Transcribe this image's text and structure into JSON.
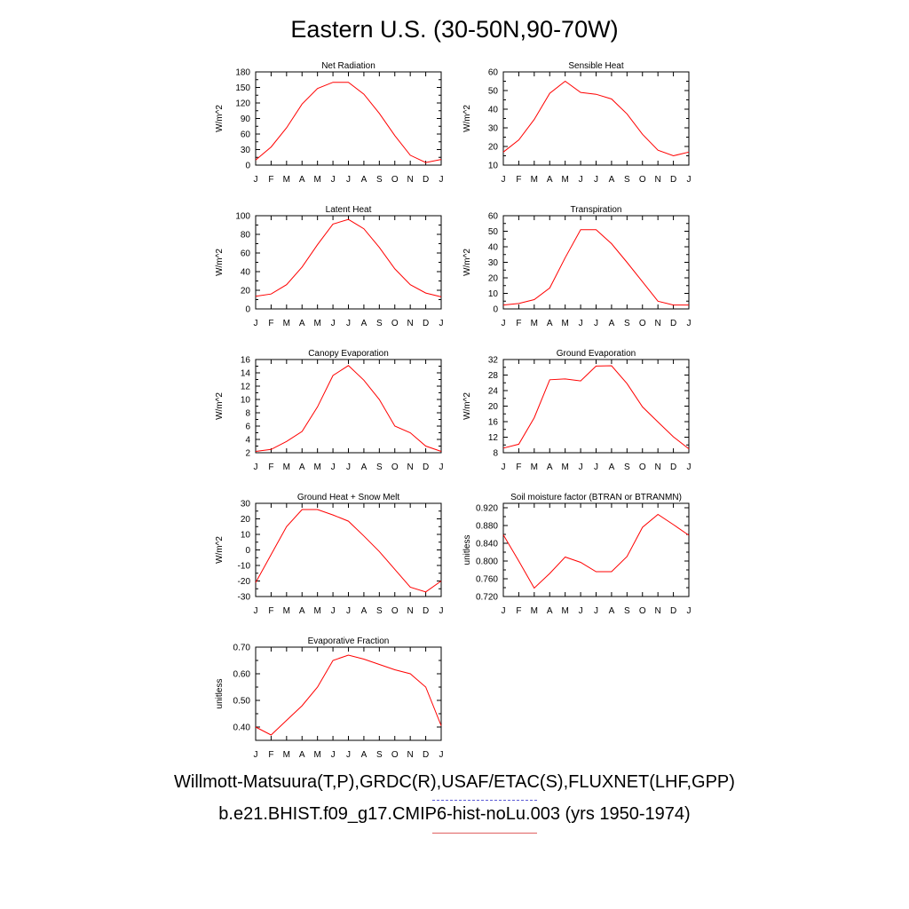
{
  "title": "Eastern U.S. (30-50N,90-70W)",
  "months": [
    "J",
    "F",
    "M",
    "A",
    "M",
    "J",
    "J",
    "A",
    "S",
    "O",
    "N",
    "D",
    "J"
  ],
  "line_color": "#ff0000",
  "chart_data": [
    {
      "type": "line",
      "title": "Net Radiation",
      "ylabel": "W/m^2",
      "ylim": [
        0,
        180
      ],
      "yticks": [
        "0",
        "30",
        "60",
        "90",
        "120",
        "150",
        "180"
      ],
      "values": [
        10,
        35,
        72,
        118,
        148,
        160,
        160,
        137,
        100,
        57,
        19,
        5,
        11
      ]
    },
    {
      "type": "line",
      "title": "Sensible Heat",
      "ylabel": "W/m^2",
      "ylim": [
        10,
        60
      ],
      "yticks": [
        "10",
        "20",
        "30",
        "40",
        "50",
        "60"
      ],
      "values": [
        17,
        23.5,
        34.5,
        48.5,
        55,
        49,
        48,
        45.5,
        37.5,
        26.5,
        18,
        15,
        17
      ]
    },
    {
      "type": "line",
      "title": "Latent Heat",
      "ylabel": "W/m^2",
      "ylim": [
        0,
        100
      ],
      "yticks": [
        "0",
        "20",
        "40",
        "60",
        "80",
        "100"
      ],
      "values": [
        13.5,
        16,
        26,
        45,
        69,
        91,
        96,
        86,
        66,
        43,
        26,
        17,
        13
      ]
    },
    {
      "type": "line",
      "title": "Transpiration",
      "ylabel": "W/m^2",
      "ylim": [
        0,
        60
      ],
      "yticks": [
        "0",
        "10",
        "20",
        "30",
        "40",
        "50",
        "60"
      ],
      "values": [
        2.5,
        3.5,
        6,
        13.5,
        33,
        51,
        51,
        42,
        30,
        17.5,
        5,
        2.5,
        2.5
      ]
    },
    {
      "type": "line",
      "title": "Canopy Evaporation",
      "ylabel": "W/m^2",
      "ylim": [
        2,
        16
      ],
      "yticks": [
        "2",
        "4",
        "6",
        "8",
        "10",
        "12",
        "14",
        "16"
      ],
      "values": [
        2.2,
        2.5,
        3.7,
        5.2,
        8.9,
        13.6,
        15.1,
        12.9,
        10.0,
        6.0,
        5.0,
        3.0,
        2.2
      ]
    },
    {
      "type": "line",
      "title": "Ground Evaporation",
      "ylabel": "W/m^2",
      "ylim": [
        8,
        32
      ],
      "yticks": [
        "8",
        "12",
        "16",
        "20",
        "24",
        "28",
        "32"
      ],
      "values": [
        9.2,
        10.2,
        17,
        26.8,
        27,
        26.5,
        30.3,
        30.4,
        25.8,
        19.8,
        15.9,
        12.1,
        9
      ]
    },
    {
      "type": "line",
      "title": "Ground Heat + Snow Melt",
      "ylabel": "W/m^2",
      "ylim": [
        -30,
        30
      ],
      "yticks": [
        "-30",
        "-20",
        "-10",
        "0",
        "10",
        "20",
        "30"
      ],
      "values": [
        -21,
        -3,
        15,
        26,
        26,
        22.5,
        18.5,
        9,
        -1,
        -12.5,
        -24,
        -27,
        -20
      ]
    },
    {
      "type": "line",
      "title": "Soil moisture factor (BTRAN or BTRANMN)",
      "ylabel": "unitless",
      "ylim": [
        0.72,
        0.93
      ],
      "yticks": [
        "0.720",
        "0.760",
        "0.800",
        "0.840",
        "0.880",
        "0.920"
      ],
      "values": [
        0.859,
        0.8,
        0.739,
        0.772,
        0.809,
        0.797,
        0.776,
        0.776,
        0.81,
        0.876,
        0.905,
        0.882,
        0.858
      ]
    },
    {
      "type": "line",
      "title": "Evaporative Fraction",
      "ylabel": "unitless",
      "ylim": [
        0.35,
        0.7
      ],
      "yticks": [
        "0.40",
        "0.50",
        "0.60",
        "0.70"
      ],
      "values": [
        0.4,
        0.37,
        0.425,
        0.48,
        0.55,
        0.65,
        0.67,
        0.655,
        0.635,
        0.615,
        0.6,
        0.55,
        0.405
      ]
    }
  ],
  "footer": {
    "observations": "Willmott-Matsuura(T,P),GRDC(R),USAF/ETAC(S),FLUXNET(LHF,GPP)",
    "model": "b.e21.BHIST.f09_g17.CMIP6-hist-noLu.003 (yrs 1950-1974)"
  }
}
